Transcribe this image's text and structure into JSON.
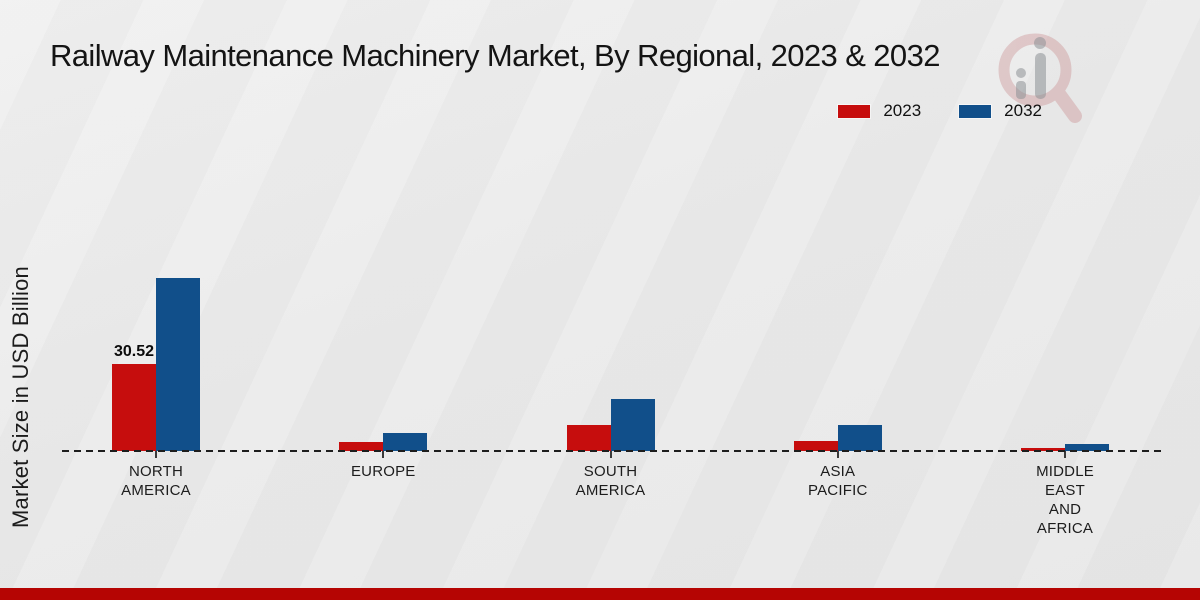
{
  "page": {
    "title": "Railway Maintenance Machinery Market, By Regional, 2023 & 2032"
  },
  "chart_data": {
    "type": "bar",
    "title": "Railway Maintenance Machinery Market, By Regional, 2023 & 2032",
    "xlabel": "",
    "ylabel": "Market Size in USD Billion",
    "categories": [
      "NORTH AMERICA",
      "EUROPE",
      "SOUTH AMERICA",
      "ASIA PACIFIC",
      "MIDDLE EAST AND AFRICA"
    ],
    "category_label_lines": [
      [
        "NORTH",
        "AMERICA"
      ],
      [
        "EUROPE"
      ],
      [
        "SOUTH",
        "AMERICA"
      ],
      [
        "ASIA",
        "PACIFIC"
      ],
      [
        "MIDDLE",
        "EAST",
        "AND",
        "AFRICA"
      ]
    ],
    "series": [
      {
        "name": "2023",
        "color": "#c60d0d",
        "values": [
          30.52,
          3.2,
          9.1,
          3.4,
          1.1
        ]
      },
      {
        "name": "2032",
        "color": "#114f8a",
        "values": [
          60.7,
          6.3,
          18.2,
          9.0,
          2.5
        ]
      }
    ],
    "value_labels": [
      {
        "series_index": 0,
        "category_index": 0,
        "text": "30.52"
      }
    ],
    "ylim": [
      0,
      65
    ],
    "grid": false,
    "legend_position": "top-right",
    "baseline_style": "dashed-zero-line",
    "watermark_icon": "magnifier-bar-chart-watermark"
  },
  "footer": {
    "color": "#b50503"
  }
}
